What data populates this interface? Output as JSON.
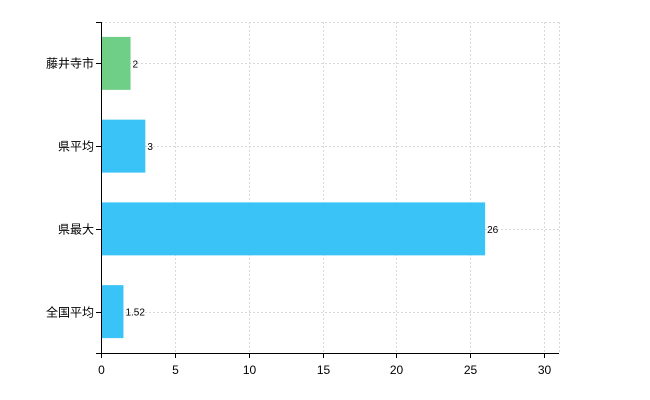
{
  "chart_data": {
    "type": "bar",
    "orientation": "horizontal",
    "categories": [
      "藤井寺市",
      "県平均",
      "県最大",
      "全国平均"
    ],
    "values": [
      2,
      3,
      26,
      1.52
    ],
    "value_labels": [
      "2",
      "3",
      "26",
      "1.52"
    ],
    "bar_colors": [
      "#6fcf87",
      "#39c3f7",
      "#39c3f7",
      "#39c3f7"
    ],
    "xlim": [
      0,
      31
    ],
    "x_ticks": [
      0,
      5,
      10,
      15,
      20,
      25,
      30
    ],
    "x_tick_labels": [
      "0",
      "5",
      "10",
      "15",
      "20",
      "25",
      "30"
    ],
    "grid": true,
    "legend": "none"
  }
}
